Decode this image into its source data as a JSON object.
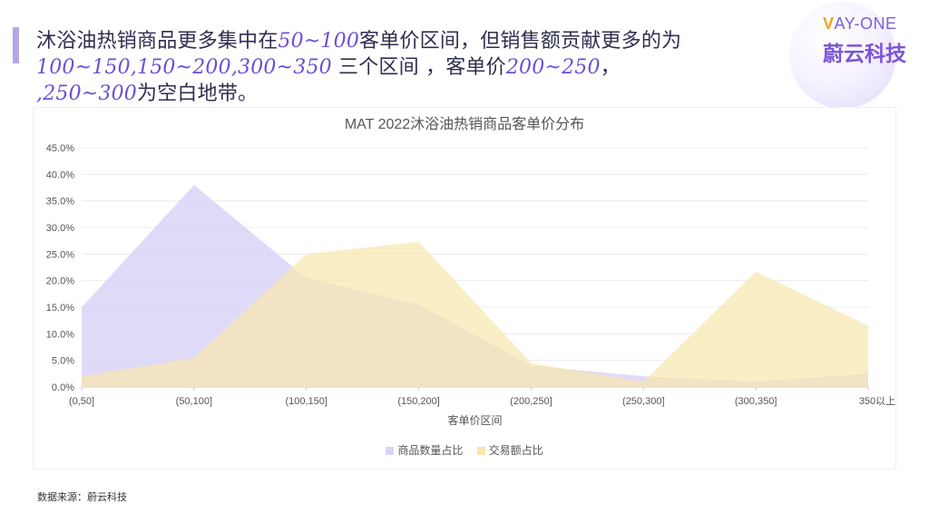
{
  "header": {
    "line1_a": "沐浴油热销商品更多集中在",
    "line1_hl": "50~100",
    "line1_b": "客单价区间，但销售额贡献更多的为",
    "line2_hl": "100~150,150~200,300~350",
    "line2_b": " 三个区间 ，客单价",
    "line2_hl2": "200~250",
    "line2_c": "，",
    "line3_hl": ",250~300",
    "line3_b": "为空白地带。"
  },
  "logo": {
    "en_v": "V",
    "en_rest": "AY-ONE",
    "cn": "蔚云科技"
  },
  "chart_data": {
    "type": "area",
    "title": "MAT 2022沐浴油热销商品客单价分布",
    "xlabel": "客单价区间",
    "ylabel": "",
    "categories": [
      "(0,50]",
      "(50,100]",
      "(100,150]",
      "(150,200]",
      "(200,250]",
      "(250,300]",
      "(300,350]",
      "350以上"
    ],
    "ylim": [
      0,
      45
    ],
    "yticks": [
      "0.0%",
      "5.0%",
      "10.0%",
      "15.0%",
      "20.0%",
      "25.0%",
      "30.0%",
      "35.0%",
      "40.0%",
      "45.0%"
    ],
    "series": [
      {
        "name": "商品数量占比",
        "values": [
          15.0,
          38.0,
          20.5,
          15.5,
          4.0,
          2.0,
          1.0,
          2.5
        ],
        "color": "#d9d3f7"
      },
      {
        "name": "交易额占比",
        "values": [
          2.0,
          5.5,
          25.0,
          27.3,
          4.5,
          1.0,
          21.7,
          11.5
        ],
        "color": "#f8e7ae"
      }
    ],
    "grid": true,
    "legend_position": "bottom"
  },
  "footer": {
    "source": "数据来源：蔚云科技"
  }
}
